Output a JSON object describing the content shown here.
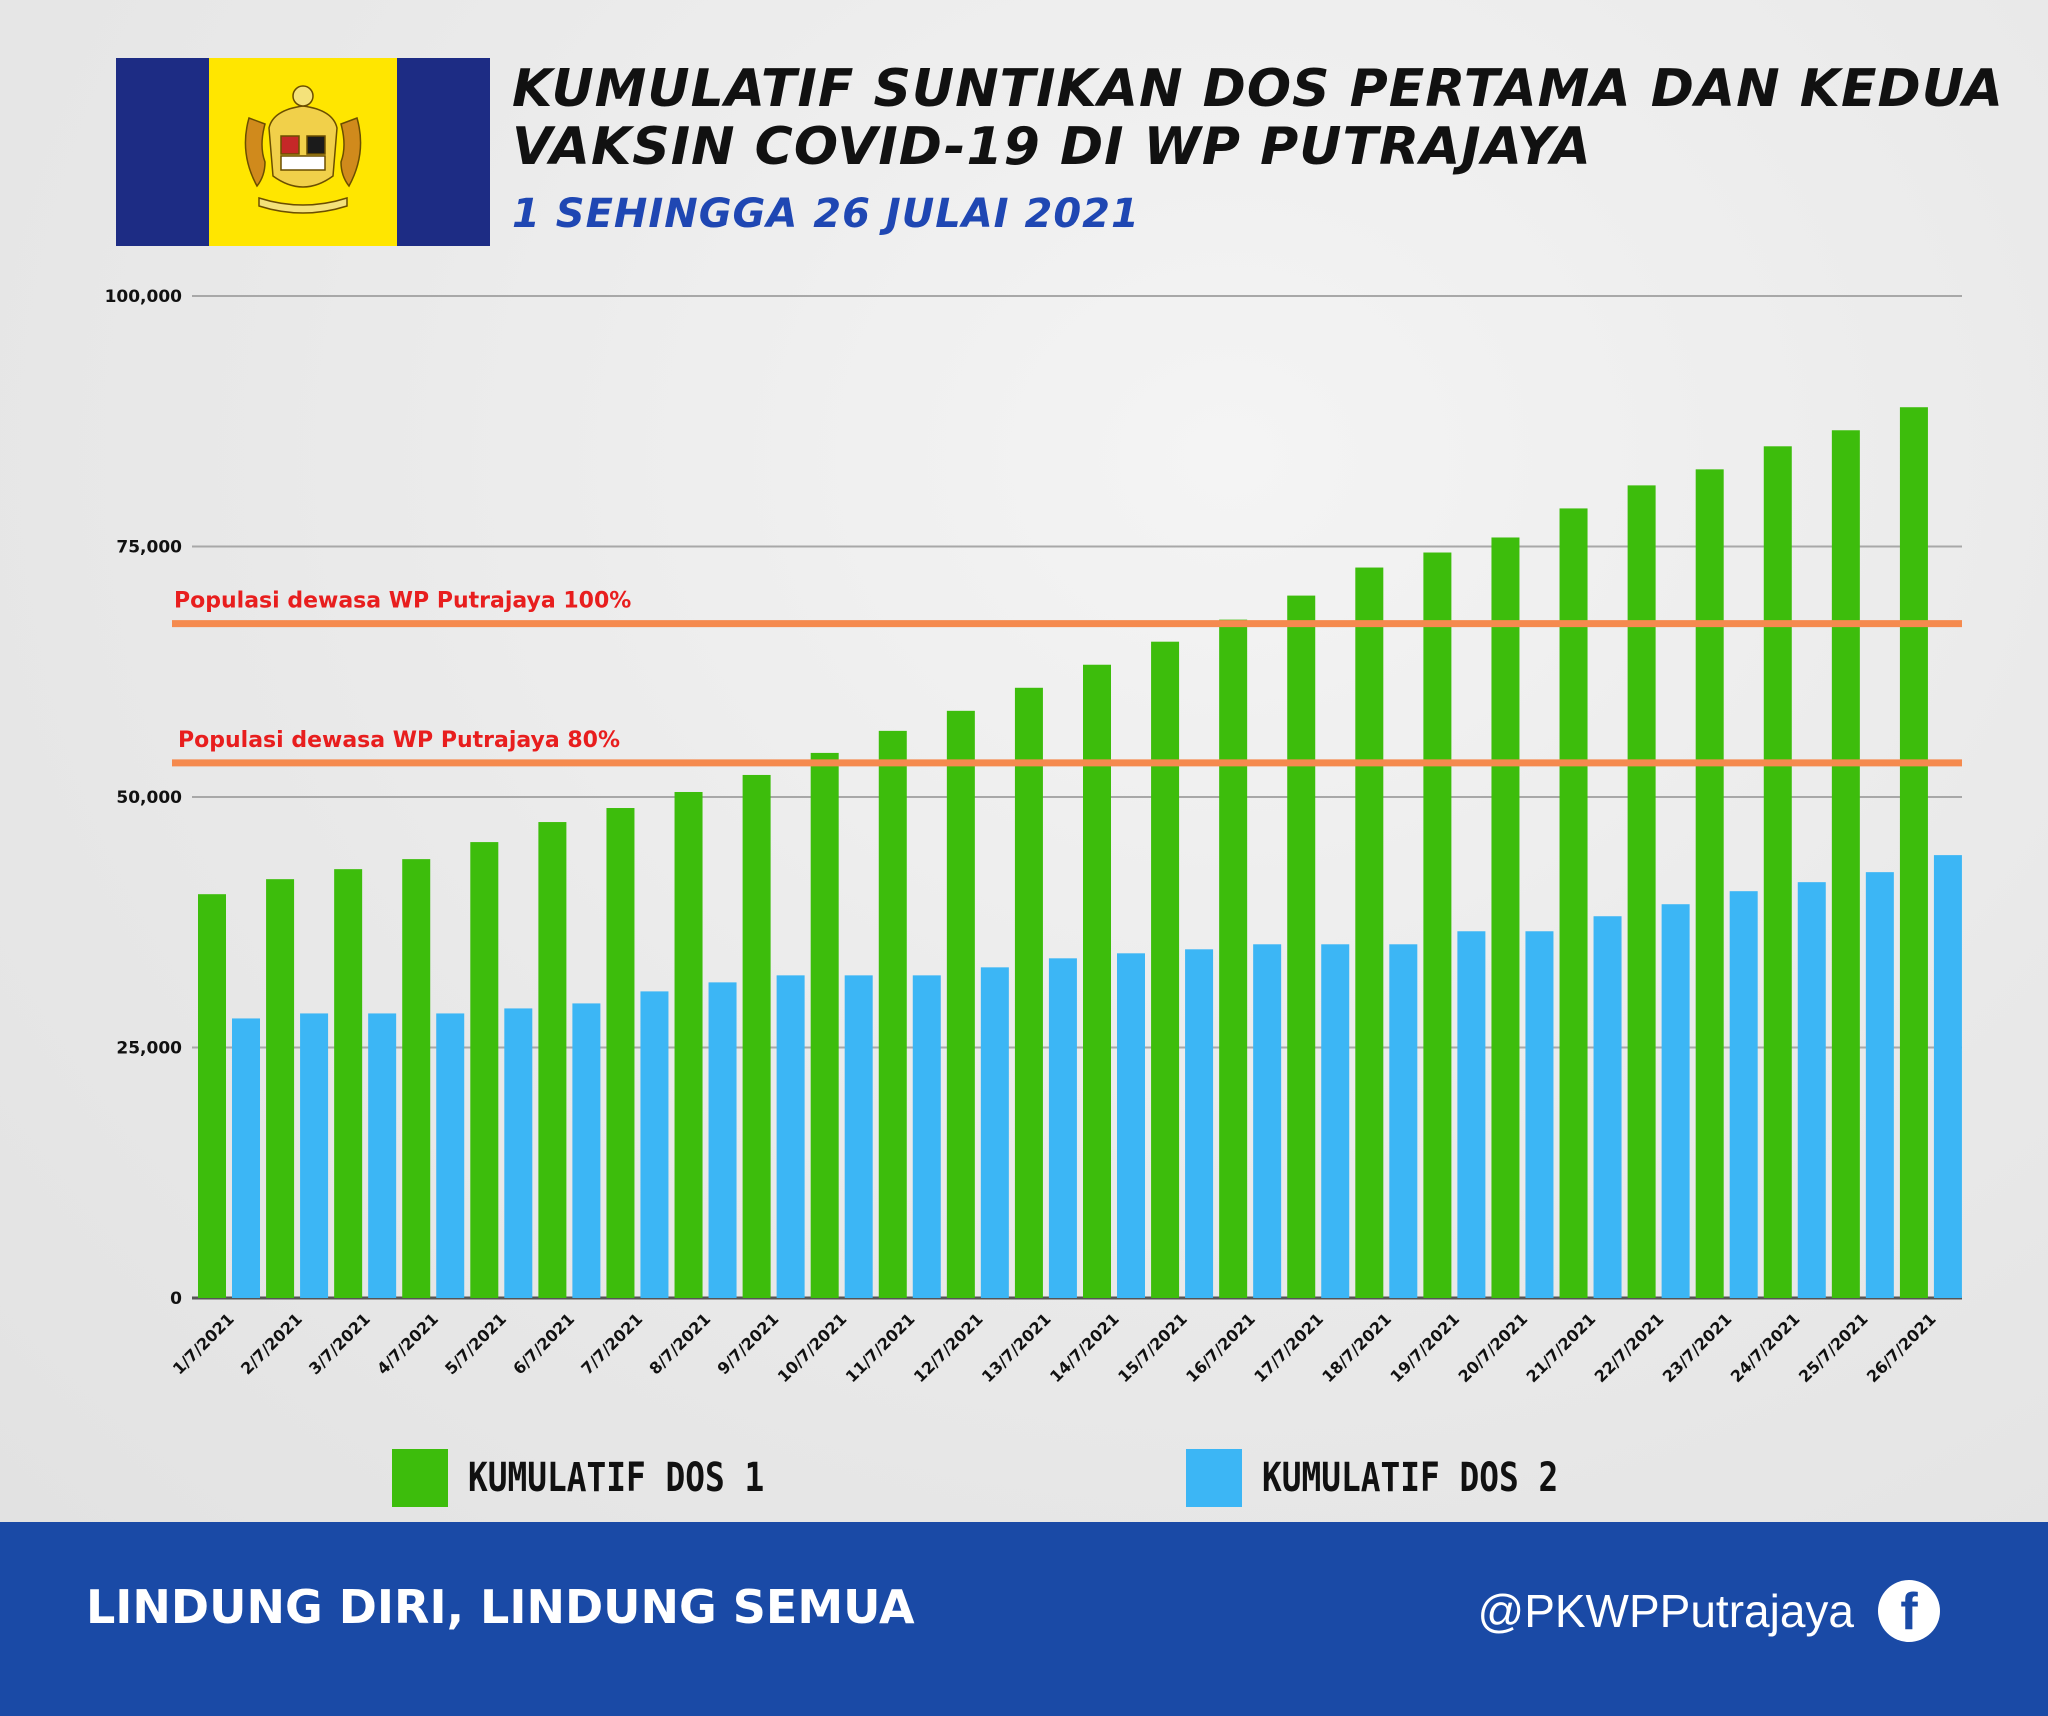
{
  "title": "KUMULATIF SUNTIKAN DOS PERTAMA DAN KEDUA VAKSIN COVID-19 DI WP PUTRAJAYA",
  "subtitle": "1 SEHINGGA 26 JULAI 2021",
  "footer": {
    "slogan": "LINDUNG DIRI, LINDUNG SEMUA",
    "handle": "@PKWPPutrajaya",
    "social_icon": "facebook-icon"
  },
  "colors": {
    "dos1": "#3dbd0c",
    "dos2": "#3cb6f5",
    "reference_line": "#f58a4e",
    "reference_label": "#e81e1e",
    "footer": "#1a4aa6",
    "subtitle": "#1f47b3"
  },
  "chart_data": {
    "type": "bar",
    "title": "KUMULATIF SUNTIKAN DOS PERTAMA DAN KEDUA VAKSIN COVID-19 DI WP PUTRAJAYA",
    "subtitle": "1 SEHINGGA 26 JULAI 2021",
    "xlabel": "",
    "ylabel": "",
    "ylim": [
      0,
      100000
    ],
    "yticks": [
      0,
      25000,
      50000,
      75000,
      100000
    ],
    "ytick_labels": [
      "0",
      "25,000",
      "50,000",
      "75,000",
      "100,000"
    ],
    "grid": true,
    "legend_position": "bottom",
    "categories": [
      "1/7/2021",
      "2/7/2021",
      "3/7/2021",
      "4/7/2021",
      "5/7/2021",
      "6/7/2021",
      "7/7/2021",
      "8/7/2021",
      "9/7/2021",
      "10/7/2021",
      "11/7/2021",
      "12/7/2021",
      "13/7/2021",
      "14/7/2021",
      "15/7/2021",
      "16/7/2021",
      "17/7/2021",
      "18/7/2021",
      "19/7/2021",
      "20/7/2021",
      "21/7/2021",
      "22/7/2021",
      "23/7/2021",
      "24/7/2021",
      "25/7/2021",
      "26/7/2021"
    ],
    "series": [
      {
        "name": "KUMULATIF DOS 1",
        "color": "#3dbd0c",
        "values": [
          40300,
          41800,
          42800,
          43800,
          45500,
          47500,
          48900,
          50500,
          52200,
          54400,
          56600,
          58600,
          60900,
          63200,
          65500,
          67700,
          70100,
          72900,
          74400,
          75900,
          78800,
          81100,
          82700,
          85000,
          86600,
          88900
        ]
      },
      {
        "name": "KUMULATIF DOS 2",
        "color": "#3cb6f5",
        "values": [
          27900,
          28400,
          28400,
          28400,
          28900,
          29400,
          30600,
          31500,
          32200,
          32200,
          32200,
          33000,
          33900,
          34400,
          34800,
          35300,
          35300,
          35300,
          36600,
          36600,
          38100,
          39300,
          40600,
          41500,
          42500,
          44200
        ]
      }
    ],
    "reference_lines": [
      {
        "label": "Populasi dewasa WP Putrajaya 100%",
        "value": 67300
      },
      {
        "label": "Populasi dewasa WP Putrajaya 80%",
        "value": 53400
      }
    ]
  }
}
